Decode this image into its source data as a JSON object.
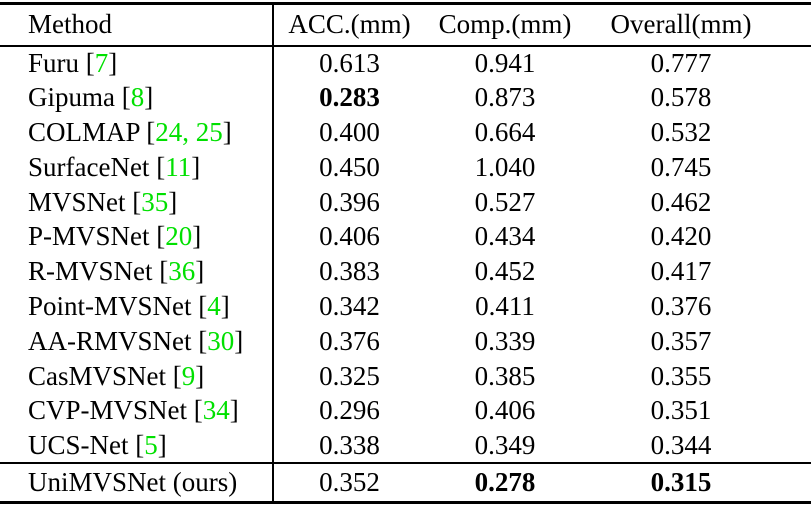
{
  "table": {
    "title": "mvs-benchmark-results",
    "columns": [
      "Method",
      "ACC.(mm)",
      "Comp.(mm)",
      "Overall(mm)"
    ],
    "citation_color": "#00e000",
    "rows": [
      {
        "method": "Furu",
        "citation": "7",
        "values": [
          "0.613",
          "0.941",
          "0.777"
        ],
        "bold": []
      },
      {
        "method": "Gipuma",
        "citation": "8",
        "values": [
          "0.283",
          "0.873",
          "0.578"
        ],
        "bold": [
          0
        ]
      },
      {
        "method": "COLMAP",
        "citation": "24, 25",
        "values": [
          "0.400",
          "0.664",
          "0.532"
        ],
        "bold": []
      },
      {
        "method": "SurfaceNet",
        "citation": "11",
        "values": [
          "0.450",
          "1.040",
          "0.745"
        ],
        "bold": []
      },
      {
        "method": "MVSNet",
        "citation": "35",
        "values": [
          "0.396",
          "0.527",
          "0.462"
        ],
        "bold": []
      },
      {
        "method": "P-MVSNet",
        "citation": "20",
        "values": [
          "0.406",
          "0.434",
          "0.420"
        ],
        "bold": []
      },
      {
        "method": "R-MVSNet",
        "citation": "36",
        "values": [
          "0.383",
          "0.452",
          "0.417"
        ],
        "bold": []
      },
      {
        "method": "Point-MVSNet",
        "citation": "4",
        "values": [
          "0.342",
          "0.411",
          "0.376"
        ],
        "bold": []
      },
      {
        "method": "AA-RMVSNet",
        "citation": "30",
        "values": [
          "0.376",
          "0.339",
          "0.357"
        ],
        "bold": []
      },
      {
        "method": "CasMVSNet",
        "citation": "9",
        "values": [
          "0.325",
          "0.385",
          "0.355"
        ],
        "bold": []
      },
      {
        "method": "CVP-MVSNet",
        "citation": "34",
        "values": [
          "0.296",
          "0.406",
          "0.351"
        ],
        "bold": []
      },
      {
        "method": "UCS-Net",
        "citation": "5",
        "values": [
          "0.338",
          "0.349",
          "0.344"
        ],
        "bold": []
      },
      {
        "method": "UniMVSNet (ours)",
        "citation": null,
        "values": [
          "0.352",
          "0.278",
          "0.315"
        ],
        "bold": [
          1,
          2
        ],
        "last_section": true
      }
    ]
  }
}
